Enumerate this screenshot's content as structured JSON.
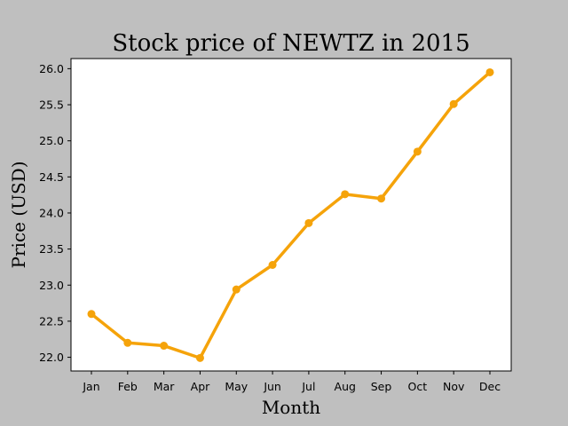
{
  "chart_data": {
    "type": "line",
    "title": "Stock price of NEWTZ in 2015",
    "xlabel": "Month",
    "ylabel": "Price (USD)",
    "categories": [
      "Jan",
      "Feb",
      "Mar",
      "Apr",
      "May",
      "Jun",
      "Jul",
      "Aug",
      "Sep",
      "Oct",
      "Nov",
      "Dec"
    ],
    "values": [
      22.6,
      22.2,
      22.16,
      21.99,
      22.94,
      23.28,
      23.86,
      24.26,
      24.2,
      24.85,
      25.51,
      25.95
    ],
    "ylim": [
      21.81,
      26.14
    ],
    "yticks": [
      "22.0",
      "22.5",
      "23.0",
      "23.5",
      "24.0",
      "24.5",
      "25.0",
      "25.5",
      "26.0"
    ],
    "grid": false,
    "colors": {
      "line": "#f5a30a",
      "figure_background": "#bfbfbf",
      "plot_background": "#ffffff"
    }
  }
}
